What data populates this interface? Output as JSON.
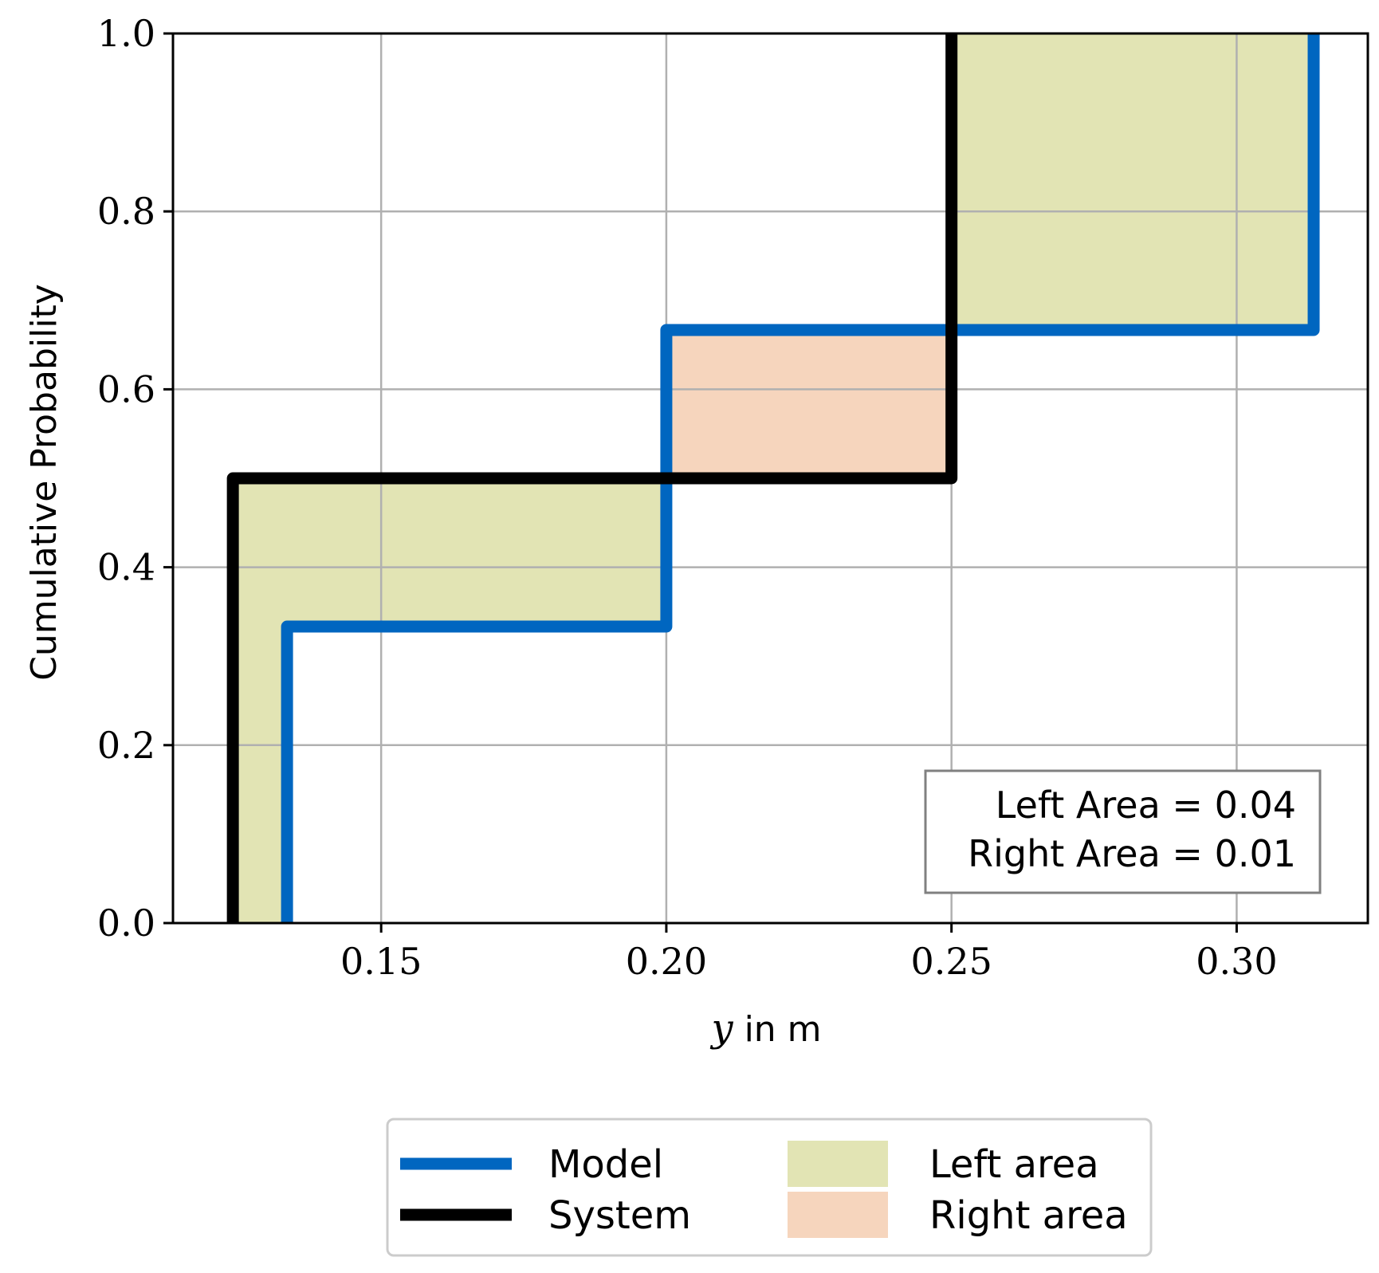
{
  "chart_data": {
    "type": "line",
    "subtype": "empirical-cdf-step",
    "title": "",
    "xlabel_var": "y",
    "xlabel_rest": " in m",
    "ylabel": "Cumulative Probability",
    "xlim": [
      0.1135,
      0.323
    ],
    "ylim": [
      0.0,
      1.0
    ],
    "grid": true,
    "x_ticks": [
      0.15,
      0.2,
      0.25,
      0.3
    ],
    "x_tick_labels": [
      "0.15",
      "0.20",
      "0.25",
      "0.30"
    ],
    "y_ticks": [
      0.0,
      0.2,
      0.4,
      0.6,
      0.8,
      1.0
    ],
    "y_tick_labels": [
      "0.0",
      "0.2",
      "0.4",
      "0.6",
      "0.8",
      "1.0"
    ],
    "series": [
      {
        "name": "Model",
        "color": "#0066c0",
        "steps": [
          [
            0.1335,
            0.0
          ],
          [
            0.1335,
            0.3333
          ],
          [
            0.2,
            0.3333
          ],
          [
            0.2,
            0.6667
          ],
          [
            0.3135,
            0.6667
          ],
          [
            0.3135,
            1.0
          ]
        ]
      },
      {
        "name": "System",
        "color": "#000000",
        "steps": [
          [
            0.124,
            0.0
          ],
          [
            0.124,
            0.5
          ],
          [
            0.25,
            0.5
          ],
          [
            0.25,
            1.0
          ]
        ]
      }
    ],
    "areas": [
      {
        "name": "Left area",
        "color": "#e2e4b4",
        "regions": [
          [
            [
              0.124,
              0.0
            ],
            [
              0.1335,
              0.0
            ],
            [
              0.1335,
              0.3333
            ],
            [
              0.2,
              0.3333
            ],
            [
              0.2,
              0.5
            ],
            [
              0.124,
              0.5
            ]
          ],
          [
            [
              0.25,
              0.6667
            ],
            [
              0.3135,
              0.6667
            ],
            [
              0.3135,
              1.0
            ],
            [
              0.25,
              1.0
            ]
          ]
        ]
      },
      {
        "name": "Right area",
        "color": "#f6d5bd",
        "regions": [
          [
            [
              0.2,
              0.5
            ],
            [
              0.25,
              0.5
            ],
            [
              0.25,
              0.6667
            ],
            [
              0.2,
              0.6667
            ]
          ]
        ]
      }
    ],
    "annotation": {
      "left_area_text": "Left Area = 0.04",
      "right_area_text": "Right Area = 0.01",
      "position": "bottom-right"
    },
    "legend": {
      "position": "below-plot",
      "entries": [
        {
          "label": "Model",
          "kind": "line",
          "color": "#0066c0"
        },
        {
          "label": "System",
          "kind": "line",
          "color": "#000000"
        },
        {
          "label": "Left area",
          "kind": "patch",
          "color": "#e2e4b4"
        },
        {
          "label": "Right area",
          "kind": "patch",
          "color": "#f6d5bd"
        }
      ]
    }
  }
}
